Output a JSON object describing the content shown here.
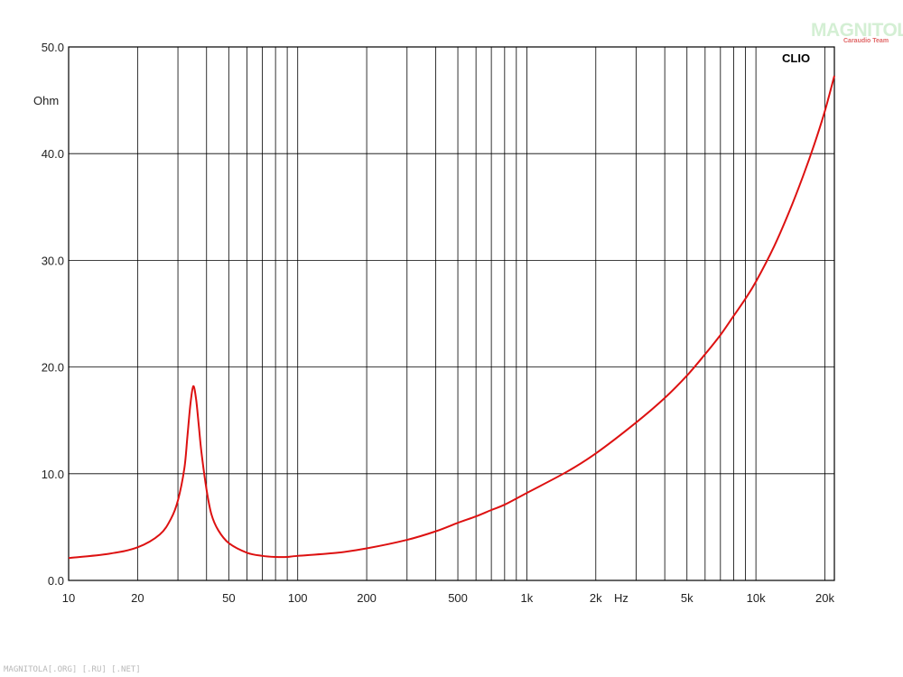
{
  "chart_data": {
    "type": "line",
    "brand_label": "CLIO",
    "y_unit_label": "Ohm",
    "x_unit_label": "Hz",
    "x_scale": "log",
    "xlim": [
      10,
      22000
    ],
    "ylim": [
      0,
      50
    ],
    "grid": true,
    "y_ticks": [
      "50.0",
      "40.0",
      "30.0",
      "20.0",
      "10.0",
      "0.0"
    ],
    "y_tick_values": [
      50,
      40,
      30,
      20,
      10,
      0
    ],
    "x_ticks": [
      "10",
      "20",
      "50",
      "100",
      "200",
      "500",
      "1k",
      "2k",
      "5k",
      "10k",
      "20k"
    ],
    "x_tick_values": [
      10,
      20,
      50,
      100,
      200,
      500,
      1000,
      2000,
      5000,
      10000,
      20000
    ],
    "series": [
      {
        "color": "#dd1111",
        "points": [
          [
            10,
            2.1
          ],
          [
            15,
            2.5
          ],
          [
            20,
            3.1
          ],
          [
            25,
            4.3
          ],
          [
            28,
            5.8
          ],
          [
            30,
            7.5
          ],
          [
            32,
            10.5
          ],
          [
            33,
            13.5
          ],
          [
            34,
            16.5
          ],
          [
            35,
            18.2
          ],
          [
            36,
            17.0
          ],
          [
            37,
            14.5
          ],
          [
            38,
            12.0
          ],
          [
            40,
            8.5
          ],
          [
            42,
            6.2
          ],
          [
            45,
            4.7
          ],
          [
            50,
            3.5
          ],
          [
            60,
            2.6
          ],
          [
            70,
            2.3
          ],
          [
            80,
            2.2
          ],
          [
            90,
            2.2
          ],
          [
            100,
            2.3
          ],
          [
            150,
            2.6
          ],
          [
            200,
            3.0
          ],
          [
            300,
            3.8
          ],
          [
            400,
            4.6
          ],
          [
            500,
            5.4
          ],
          [
            600,
            6.0
          ],
          [
            700,
            6.6
          ],
          [
            800,
            7.1
          ],
          [
            1000,
            8.2
          ],
          [
            1500,
            10.2
          ],
          [
            2000,
            11.9
          ],
          [
            3000,
            14.8
          ],
          [
            4000,
            17.1
          ],
          [
            5000,
            19.2
          ],
          [
            6000,
            21.2
          ],
          [
            7000,
            23.0
          ],
          [
            8000,
            24.8
          ],
          [
            9000,
            26.4
          ],
          [
            10000,
            28.0
          ],
          [
            12000,
            31.3
          ],
          [
            14000,
            34.6
          ],
          [
            16000,
            37.8
          ],
          [
            18000,
            40.9
          ],
          [
            20000,
            44.0
          ],
          [
            22000,
            47.3
          ]
        ]
      }
    ]
  },
  "watermark": {
    "logo_text": "MAGNITOLA",
    "logo_subtext": "Caraudio Team",
    "footer_text": "MAGNITOLA[.ORG] [.RU] [.NET]"
  }
}
